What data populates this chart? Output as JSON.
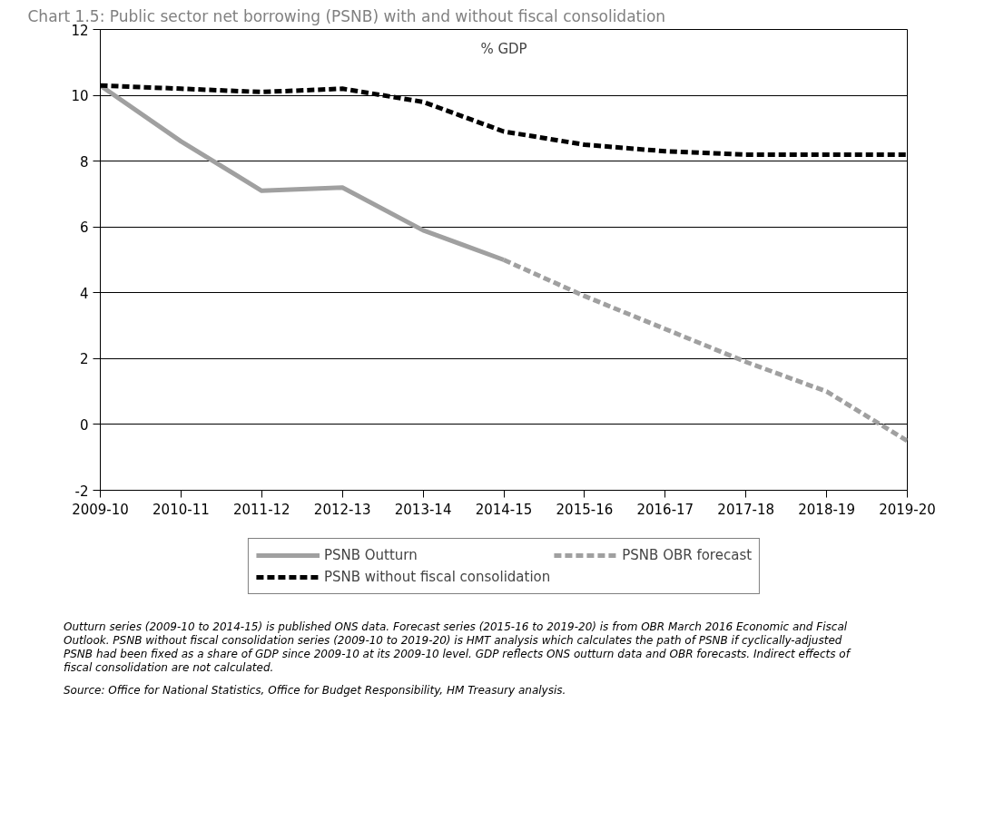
{
  "chart_data": {
    "type": "line",
    "title": "Chart 1.5: Public sector net borrowing (PSNB) with and without fiscal consolidation",
    "ylabel": "% GDP",
    "categories": [
      "2009-10",
      "2010-11",
      "2011-12",
      "2012-13",
      "2013-14",
      "2014-15",
      "2015-16",
      "2016-17",
      "2017-18",
      "2018-19",
      "2019-20"
    ],
    "series": [
      {
        "name": "PSNB Outturn",
        "color": "#a0a0a0",
        "line_style": "solid",
        "values": [
          10.3,
          8.6,
          7.1,
          7.2,
          5.9,
          5.0,
          null,
          null,
          null,
          null,
          null
        ]
      },
      {
        "name": "PSNB OBR forecast",
        "color": "#a0a0a0",
        "line_style": "dashed",
        "values": [
          null,
          null,
          null,
          null,
          null,
          5.0,
          3.9,
          2.9,
          1.9,
          1.0,
          -0.5
        ]
      },
      {
        "name": "PSNB without fiscal consolidation",
        "color": "#000000",
        "line_style": "dashed",
        "values": [
          10.3,
          10.2,
          10.1,
          10.2,
          9.8,
          8.9,
          8.5,
          8.3,
          8.2,
          8.2,
          8.2
        ]
      }
    ],
    "ylim": [
      -2,
      12
    ],
    "yticks": [
      -2,
      0,
      2,
      4,
      6,
      8,
      10,
      12
    ],
    "grid": "y",
    "legend": "bottom",
    "marker": "none",
    "annotations": [
      "Outturn series (2009-10 to 2014-15) is published ONS data. Forecast series (2015-16 to 2019-20) is from OBR March 2016 Economic and Fiscal Outlook. PSNB without fiscal consolidation series (2009-10 to 2019-20) is HMT analysis which calculates the path of PSNB if cyclically-adjusted PSNB had been fixed as a share of GDP since 2009-10 at its 2009-10 level. GDP reflects ONS outturn data and OBR forecasts. Indirect effects of fiscal consolidation are not calculated.",
      "Source: Office for National Statistics, Office for Budget Responsibility, HM Treasury analysis."
    ]
  }
}
